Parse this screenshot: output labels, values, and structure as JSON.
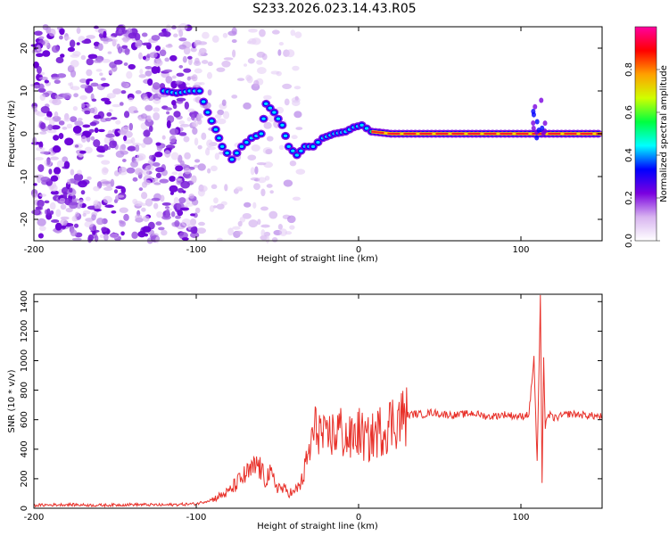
{
  "title": "S233.2026.023.14.43.R05",
  "chart_data": [
    {
      "type": "heatmap",
      "name": "spectrogram",
      "xlabel": "Height of straight line (km)",
      "ylabel": "Frequency (Hz)",
      "xlim": [
        -200,
        150
      ],
      "ylim": [
        -25,
        25
      ],
      "xticks": [
        -200,
        -100,
        0,
        100
      ],
      "yticks": [
        -20,
        -10,
        0,
        10,
        20
      ],
      "colorbar": {
        "label": "Normalized spectral amplitude",
        "range": [
          0,
          1
        ],
        "ticks": [
          0.0,
          0.2,
          0.4,
          0.6,
          0.8
        ],
        "colors": [
          "#ffffff",
          "#d8b4f0",
          "#7a00e0",
          "#0000ff",
          "#00ffff",
          "#00ff40",
          "#d0ff00",
          "#ffa000",
          "#ff0000",
          "#ff00a0"
        ]
      },
      "ridge": [
        {
          "x": -120,
          "y": 10
        },
        {
          "x": -112,
          "y": 9.5
        },
        {
          "x": -104,
          "y": 10
        },
        {
          "x": -98,
          "y": 10
        },
        {
          "x": -93,
          "y": 5
        },
        {
          "x": -88,
          "y": 1
        },
        {
          "x": -84,
          "y": -3
        },
        {
          "x": -78,
          "y": -6
        },
        {
          "x": -72,
          "y": -3
        },
        {
          "x": -66,
          "y": -1
        },
        {
          "x": -60,
          "y": 0
        },
        {
          "x": -57,
          "y": 7
        },
        {
          "x": -52,
          "y": 5
        },
        {
          "x": -47,
          "y": 2
        },
        {
          "x": -43,
          "y": -3
        },
        {
          "x": -38,
          "y": -5
        },
        {
          "x": -33,
          "y": -3
        },
        {
          "x": -28,
          "y": -3
        },
        {
          "x": -22,
          "y": -1
        },
        {
          "x": -15,
          "y": 0
        },
        {
          "x": -8,
          "y": 0.5
        },
        {
          "x": -3,
          "y": 1.5
        },
        {
          "x": 2,
          "y": 2
        },
        {
          "x": 8,
          "y": 0.5
        },
        {
          "x": 20,
          "y": 0
        },
        {
          "x": 50,
          "y": 0
        },
        {
          "x": 80,
          "y": 0
        },
        {
          "x": 108,
          "y": 0
        },
        {
          "x": 115,
          "y": 0
        },
        {
          "x": 150,
          "y": 0
        }
      ]
    },
    {
      "type": "line",
      "name": "snr",
      "xlabel": "Height of straight line (km)",
      "ylabel": "SNR (10 * v/v)",
      "xlim": [
        -200,
        150
      ],
      "ylim": [
        0,
        1450
      ],
      "xticks": [
        -200,
        -100,
        0,
        100
      ],
      "yticks": [
        0,
        200,
        400,
        600,
        800,
        1000,
        1200,
        1400
      ],
      "color": "#e8312a",
      "series": [
        {
          "name": "SNR",
          "x": [
            -200,
            -180,
            -160,
            -140,
            -120,
            -100,
            -90,
            -80,
            -75,
            -70,
            -65,
            -62,
            -58,
            -55,
            -50,
            -45,
            -40,
            -35,
            -30,
            -28,
            -25,
            -22,
            -20,
            -17,
            -15,
            -12,
            -10,
            -5,
            0,
            5,
            10,
            15,
            20,
            25,
            30,
            35,
            40,
            45,
            50,
            60,
            70,
            80,
            90,
            100,
            105,
            108,
            110,
            112,
            113,
            114,
            115,
            116,
            118,
            120,
            130,
            140,
            150
          ],
          "y": [
            20,
            25,
            20,
            25,
            22,
            30,
            60,
            110,
            170,
            220,
            260,
            300,
            200,
            230,
            150,
            120,
            100,
            180,
            400,
            500,
            560,
            480,
            440,
            520,
            480,
            550,
            500,
            460,
            520,
            450,
            500,
            540,
            580,
            610,
            630,
            640,
            635,
            650,
            640,
            630,
            645,
            620,
            635,
            620,
            640,
            1020,
            300,
            1420,
            150,
            1000,
            560,
            620,
            630,
            610,
            640,
            630,
            620
          ]
        }
      ]
    }
  ]
}
